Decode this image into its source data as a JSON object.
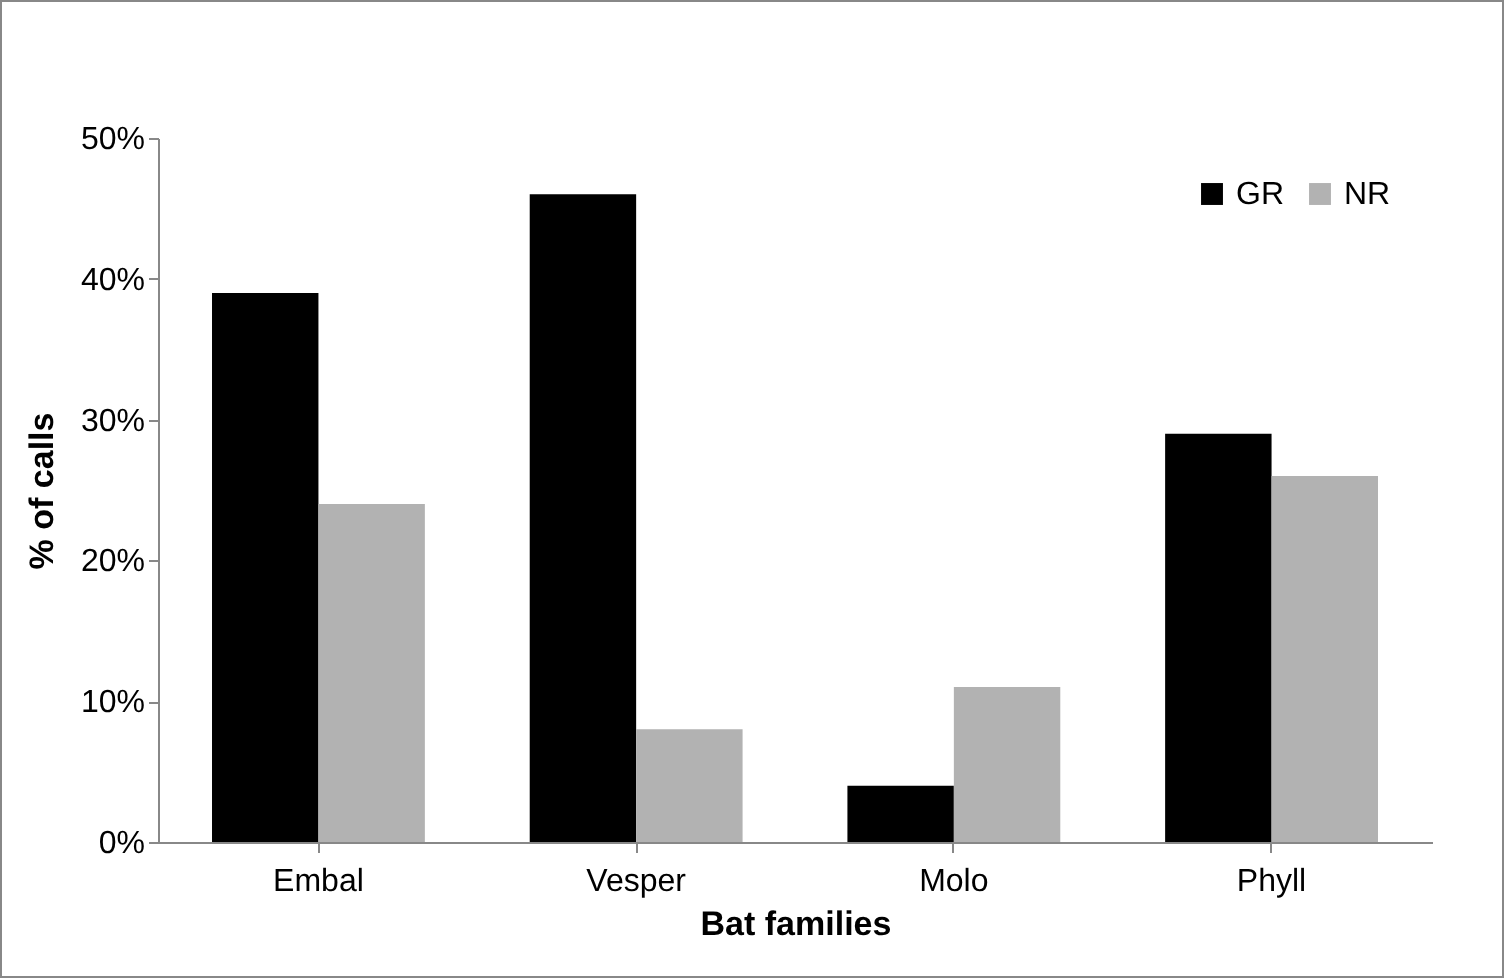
{
  "chart_data": {
    "type": "bar",
    "xlabel": "Bat families",
    "ylabel": "% of calls",
    "categories": [
      "Embal",
      "Vesper",
      "Molo",
      "Phyll"
    ],
    "series": [
      {
        "name": "GR",
        "color": "#000000",
        "values": [
          39,
          46,
          4,
          29
        ]
      },
      {
        "name": "NR",
        "color": "#b2b2b2",
        "values": [
          24,
          8,
          11,
          26
        ]
      }
    ],
    "ylim": [
      0,
      50
    ],
    "yticks": [
      {
        "value": 0,
        "label": "0%"
      },
      {
        "value": 10,
        "label": "10%"
      },
      {
        "value": 20,
        "label": "20%"
      },
      {
        "value": 30,
        "label": "30%"
      },
      {
        "value": 40,
        "label": "40%"
      },
      {
        "value": 50,
        "label": "50%"
      }
    ],
    "grid": false,
    "legend": "top right"
  }
}
